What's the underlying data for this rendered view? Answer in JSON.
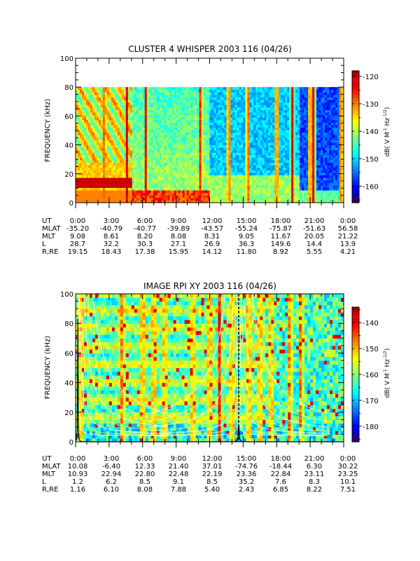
{
  "chart_data": [
    {
      "type": "heatmap",
      "title": "CLUSTER 4 WHISPER 2003 116 (04/26)",
      "ylabel": "FREQUENCY (kHz)",
      "ylim": [
        0,
        100
      ],
      "yticks": [
        "0",
        "20",
        "40",
        "60",
        "80",
        "100"
      ],
      "data_ylim": [
        0,
        80
      ],
      "colorbar": {
        "label": "dB( V M",
        "label_sup1": "-1",
        "label_mid": " Hz",
        "label_sup2": "-1/2",
        "label_end": ")",
        "range": [
          -166,
          -118
        ],
        "ticks": [
          "-120",
          "-130",
          "-140",
          "-150",
          "-160"
        ],
        "tick_values": [
          -120,
          -130,
          -140,
          -150,
          -160
        ]
      },
      "bright_bands_hours": [
        2.6,
        4.6,
        6.3,
        11.2,
        13.7,
        15.4,
        18.0,
        19.4,
        21.0,
        21.3,
        23.8
      ],
      "table": {
        "rows": [
          {
            "label": "UT",
            "values": [
              "0:00",
              "3:00",
              "6:00",
              "9:00",
              "12:00",
              "15:00",
              "18:00",
              "21:00",
              "0:00"
            ]
          },
          {
            "label": "MLAT",
            "values": [
              "-35.20",
              "-40.79",
              "-40.77",
              "-39.89",
              "-43.57",
              "-55.24",
              "-75.87",
              "-51.63",
              "56.58"
            ]
          },
          {
            "label": "MLT",
            "values": [
              "9.08",
              "8.61",
              "8.20",
              "8.08",
              "8.31",
              "9.05",
              "11.67",
              "20.05",
              "21.22"
            ]
          },
          {
            "label": "L",
            "values": [
              "28.7",
              "32.2",
              "30.3",
              "27.1",
              "26.9",
              "36.3",
              "149.6",
              "14.4",
              "13.9"
            ]
          },
          {
            "label": "R,RE",
            "values": [
              "19.15",
              "18.43",
              "17.38",
              "15.95",
              "14.12",
              "11.80",
              "8.92",
              "5.55",
              "4.21"
            ]
          }
        ]
      }
    },
    {
      "type": "heatmap",
      "title": "IMAGE RPI XY 2003 116 (04/26)",
      "ylabel": "FREQUENCY (kHz)",
      "ylim": [
        0,
        100
      ],
      "yticks": [
        "0",
        "20",
        "40",
        "60",
        "80",
        "100"
      ],
      "colorbar": {
        "label": "dB( V M",
        "label_sup1": "-1",
        "label_mid": " Hz",
        "label_sup2": "-1/2",
        "label_end": ")",
        "range": [
          -186,
          -134
        ],
        "ticks": [
          "-140",
          "-150",
          "-160",
          "-170",
          "-180"
        ],
        "tick_values": [
          -140,
          -150,
          -160,
          -170,
          -180
        ]
      },
      "bright_bands_hours": [
        0.5,
        4.2,
        6.0,
        7.0,
        8.0,
        10.5,
        12.0,
        12.9,
        14.0,
        15.5,
        16.5,
        17.5,
        19.2,
        20.2
      ],
      "table": {
        "rows": [
          {
            "label": "UT",
            "values": [
              "0:00",
              "3:00",
              "6:00",
              "9:00",
              "12:00",
              "15:00",
              "18:00",
              "21:00",
              "0:00"
            ]
          },
          {
            "label": "MLAT",
            "values": [
              "10.08",
              "-6.40",
              "12.33",
              "21.40",
              "37.01",
              "-74.76",
              "-18.44",
              "6.30",
              "30.22"
            ]
          },
          {
            "label": "MLT",
            "values": [
              "10.93",
              "22.94",
              "22.80",
              "22.48",
              "22.19",
              "23.36",
              "22.84",
              "23.11",
              "23.25"
            ]
          },
          {
            "label": "L",
            "values": [
              "1.2",
              "6.2",
              "8.5",
              "9.1",
              "8.5",
              "35.2",
              "7.6",
              "8.3",
              "10.1"
            ]
          },
          {
            "label": "R,RE",
            "values": [
              "1.16",
              "6.10",
              "8.08",
              "7.88",
              "5.40",
              "2.43",
              "6.85",
              "8.22",
              "7.51"
            ]
          }
        ]
      }
    }
  ]
}
